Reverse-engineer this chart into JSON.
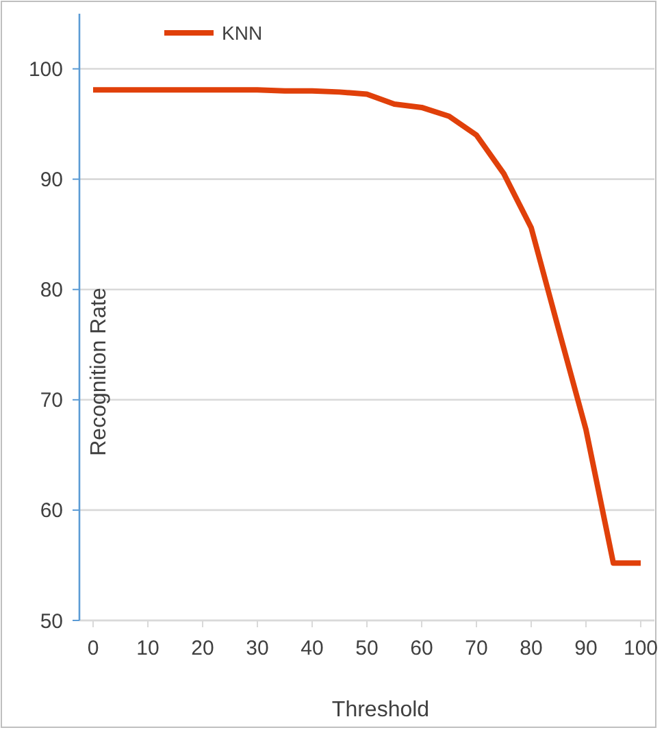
{
  "chart_data": {
    "type": "line",
    "xlabel": "Threshold",
    "ylabel": "Recognition Rate",
    "x": [
      0,
      5,
      10,
      15,
      20,
      25,
      30,
      35,
      40,
      45,
      50,
      55,
      60,
      65,
      70,
      75,
      80,
      85,
      90,
      95,
      100
    ],
    "series": [
      {
        "name": "KNN",
        "color": "#e0400a",
        "values": [
          98.1,
          98.1,
          98.1,
          98.1,
          98.1,
          98.1,
          98.1,
          98.0,
          98.0,
          97.9,
          97.7,
          96.8,
          96.5,
          95.7,
          94.0,
          90.5,
          85.6,
          76.4,
          67.3,
          55.2,
          55.2
        ]
      }
    ],
    "xlim": [
      -2.5,
      102.5
    ],
    "xticks": [
      0,
      10,
      20,
      30,
      40,
      50,
      60,
      70,
      80,
      90,
      100
    ],
    "ylim": [
      50,
      105
    ],
    "yticks": [
      50,
      60,
      70,
      80,
      90,
      100
    ],
    "grid": "y",
    "legend": "top",
    "marker": "none",
    "line_style": "solid"
  }
}
